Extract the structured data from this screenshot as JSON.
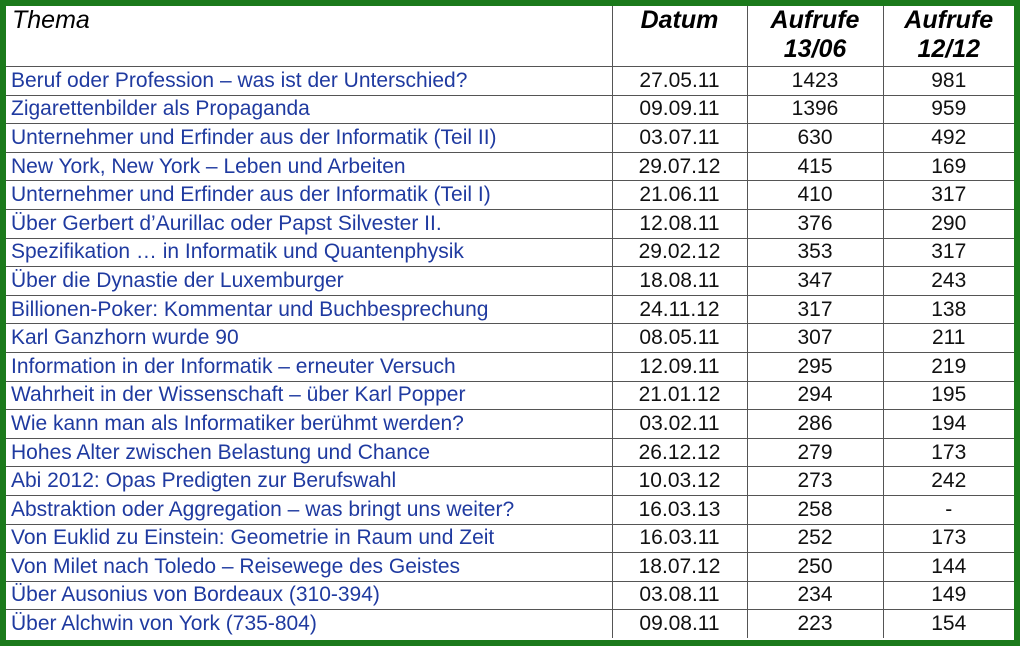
{
  "header": {
    "topic": "Thema",
    "date": "Datum",
    "views1_line1": "Aufrufe",
    "views1_line2": "13/06",
    "views2_line1": "Aufrufe",
    "views2_line2": "12/12"
  },
  "rows": [
    {
      "topic": "Beruf oder Profession – was ist der Unterschied?",
      "date": "27.05.11",
      "views_1306": "1423",
      "views_1212": "981"
    },
    {
      "topic": "Zigarettenbilder als Propaganda",
      "date": "09.09.11",
      "views_1306": "1396",
      "views_1212": "959"
    },
    {
      "topic": "Unternehmer und Erfinder aus der Informatik (Teil II)",
      "date": "03.07.11",
      "views_1306": "630",
      "views_1212": "492"
    },
    {
      "topic": "New York, New York – Leben und Arbeiten",
      "date": "29.07.12",
      "views_1306": "415",
      "views_1212": "169"
    },
    {
      "topic": "Unternehmer und Erfinder aus der Informatik (Teil I)",
      "date": "21.06.11",
      "views_1306": "410",
      "views_1212": "317"
    },
    {
      "topic": "Über Gerbert d’Aurillac oder Papst Silvester II.",
      "date": "12.08.11",
      "views_1306": "376",
      "views_1212": "290"
    },
    {
      "topic": "Spezifikation … in Informatik und Quantenphysik",
      "date": "29.02.12",
      "views_1306": "353",
      "views_1212": "317"
    },
    {
      "topic": "Über die Dynastie der Luxemburger",
      "date": "18.08.11",
      "views_1306": "347",
      "views_1212": "243"
    },
    {
      "topic": "Billionen-Poker: Kommentar und Buchbesprechung",
      "date": "24.11.12",
      "views_1306": "317",
      "views_1212": "138"
    },
    {
      "topic": "Karl Ganzhorn wurde 90",
      "date": "08.05.11",
      "views_1306": "307",
      "views_1212": "211"
    },
    {
      "topic": "Information in der Informatik – erneuter Versuch",
      "date": "12.09.11",
      "views_1306": "295",
      "views_1212": "219"
    },
    {
      "topic": "Wahrheit in der Wissenschaft – über Karl Popper",
      "date": "21.01.12",
      "views_1306": "294",
      "views_1212": "195"
    },
    {
      "topic": "Wie kann man als Informatiker berühmt werden?",
      "date": "03.02.11",
      "views_1306": "286",
      "views_1212": "194"
    },
    {
      "topic": "Hohes Alter zwischen Belastung und Chance",
      "date": "26.12.12",
      "views_1306": "279",
      "views_1212": "173"
    },
    {
      "topic": "Abi 2012: Opas Predigten zur Berufswahl",
      "date": "10.03.12",
      "views_1306": "273",
      "views_1212": "242"
    },
    {
      "topic": "Abstraktion oder Aggregation – was bringt uns weiter?",
      "date": "16.03.13",
      "views_1306": "258",
      "views_1212": "-"
    },
    {
      "topic": "Von Euklid zu Einstein: Geometrie in Raum und Zeit",
      "date": "16.03.11",
      "views_1306": "252",
      "views_1212": "173"
    },
    {
      "topic": "Von Milet nach Toledo – Reisewege des Geistes",
      "date": "18.07.12",
      "views_1306": "250",
      "views_1212": "144"
    },
    {
      "topic": "Über Ausonius von Bordeaux (310-394)",
      "date": "03.08.11",
      "views_1306": "234",
      "views_1212": "149"
    },
    {
      "topic": "Über Alchwin von York (735-804)",
      "date": "09.08.11",
      "views_1306": "223",
      "views_1212": "154"
    }
  ],
  "colors": {
    "frame": "#1b7a1b",
    "topic_text": "#1f3aa0",
    "grid": "#555555"
  }
}
